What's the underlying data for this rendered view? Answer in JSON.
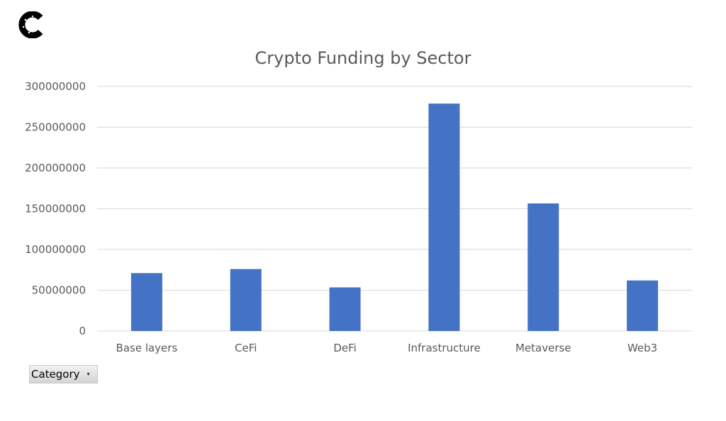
{
  "logo": {
    "icon": "c-logo-icon"
  },
  "filter": {
    "label": "Category",
    "icon": "dropdown-arrow-icon"
  },
  "chart_data": {
    "type": "bar",
    "title": "Crypto Funding by Sector",
    "xlabel": "",
    "ylabel": "",
    "categories": [
      "Base layers",
      "CeFi",
      "DeFi",
      "Infrastructure",
      "Metaverse",
      "Web3"
    ],
    "values": [
      71000000,
      76000000,
      53500000,
      279000000,
      156500000,
      62000000
    ],
    "ylim": [
      0,
      300000000
    ],
    "yticks": [
      "0",
      "50000000",
      "100000000",
      "150000000",
      "200000000",
      "250000000",
      "300000000"
    ],
    "grid": true,
    "legend": "none",
    "bar_color": "#4472c4"
  }
}
